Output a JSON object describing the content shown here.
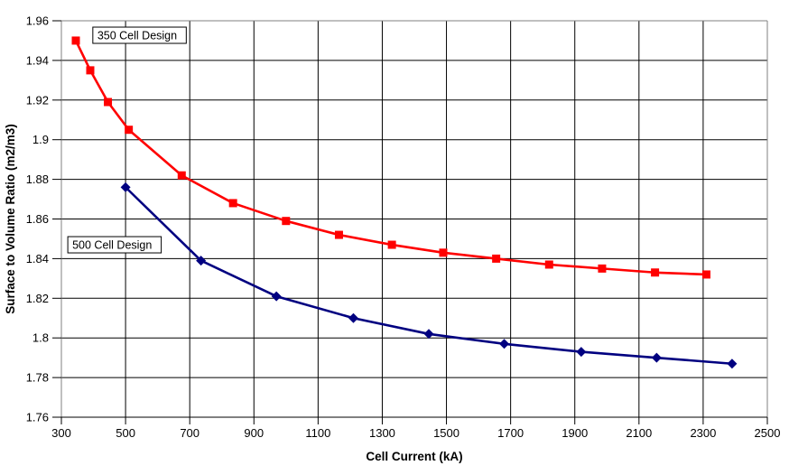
{
  "page": {
    "background": "#FFFFFF"
  },
  "chart_data": {
    "type": "line",
    "title": "",
    "xlabel": "Cell Current (kA)",
    "ylabel": "Surface to Volume Ratio (m2/m3)",
    "xlim": [
      300,
      2500
    ],
    "ylim": [
      1.76,
      1.96
    ],
    "x_ticks": [
      300,
      500,
      700,
      900,
      1100,
      1300,
      1500,
      1700,
      1900,
      2100,
      2300,
      2500
    ],
    "x_tick_labels": [
      "300",
      "500",
      "700",
      "900",
      "1100",
      "1300",
      "1500",
      "1700",
      "1900",
      "2100",
      "2300",
      "2500"
    ],
    "y_ticks": [
      1.96,
      1.94,
      1.92,
      1.9,
      1.88,
      1.86,
      1.84,
      1.82,
      1.8,
      1.78,
      1.76
    ],
    "y_tick_labels": [
      "1.96",
      "1.94",
      "1.92",
      "1.9",
      "1.88",
      "1.86",
      "1.84",
      "1.82",
      "1.8",
      "1.78",
      "1.76"
    ],
    "grid": true,
    "legend_position": "none",
    "grid_color": "#000000",
    "frame_color": "#808080",
    "axis_color": "#000000",
    "series": [
      {
        "name": "350 Cell Design",
        "color": "#FF0000",
        "marker": "square",
        "x": [
          345,
          390,
          445,
          510,
          675,
          835,
          1000,
          1165,
          1330,
          1490,
          1655,
          1820,
          1985,
          2150,
          2310
        ],
        "y": [
          1.95,
          1.935,
          1.919,
          1.905,
          1.882,
          1.868,
          1.859,
          1.852,
          1.847,
          1.843,
          1.84,
          1.837,
          1.835,
          1.833,
          1.832
        ]
      },
      {
        "name": "500 Cell Design",
        "color": "#000080",
        "marker": "diamond",
        "x": [
          500,
          735,
          970,
          1210,
          1445,
          1680,
          1920,
          2155,
          2390
        ],
        "y": [
          1.876,
          1.839,
          1.821,
          1.81,
          1.802,
          1.797,
          1.793,
          1.79,
          1.787
        ]
      }
    ],
    "annotations": [
      {
        "text": "350 Cell Design",
        "x": 398,
        "y": 1.9568
      },
      {
        "text": "500 Cell Design",
        "x": 320,
        "y": 1.8511
      }
    ]
  }
}
